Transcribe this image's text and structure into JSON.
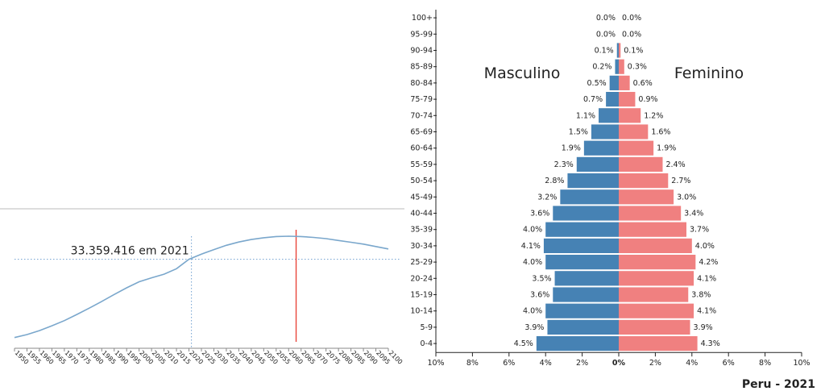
{
  "chart_data": [
    {
      "type": "line",
      "x": [
        1950,
        1955,
        1960,
        1965,
        1970,
        1975,
        1980,
        1985,
        1990,
        1995,
        2000,
        2005,
        2010,
        2015,
        2020,
        2025,
        2030,
        2035,
        2040,
        2045,
        2050,
        2055,
        2060,
        2065,
        2070,
        2075,
        2080,
        2085,
        2090,
        2095,
        2100
      ],
      "values": [
        7.6,
        8.6,
        9.9,
        11.5,
        13.2,
        15.2,
        17.3,
        19.5,
        21.8,
        24.0,
        26.0,
        27.3,
        28.5,
        30.3,
        33.4,
        35.1,
        36.6,
        38.0,
        39.1,
        39.9,
        40.5,
        40.9,
        41.0,
        40.9,
        40.6,
        40.2,
        39.6,
        39.0,
        38.4,
        37.6,
        36.8
      ],
      "xticks": [
        "1950",
        "1955",
        "1960",
        "1965",
        "1970",
        "1975",
        "1980",
        "1985",
        "1990",
        "1995",
        "2000",
        "2005",
        "2010",
        "2015",
        "2020",
        "2025",
        "2030",
        "2035",
        "2040",
        "2045",
        "2050",
        "2055",
        "2060",
        "2065",
        "2070",
        "2075",
        "2080",
        "2085",
        "2090",
        "2095",
        "2100"
      ],
      "highlight": {
        "x": 2021,
        "y": 33.4,
        "label": "33.359.416 em 2021"
      },
      "marker_year": 2063,
      "colors": {
        "line": "#7aa7cc",
        "marker": "#e8453c",
        "guide": "#6f9fd0",
        "axis": "#888888"
      }
    },
    {
      "type": "bar",
      "orientation": "horizontal",
      "categories": [
        "0-4",
        "5-9",
        "10-14",
        "15-19",
        "20-24",
        "25-29",
        "30-34",
        "35-39",
        "40-44",
        "45-49",
        "50-54",
        "55-59",
        "60-64",
        "65-69",
        "70-74",
        "75-79",
        "80-84",
        "85-89",
        "90-94",
        "95-99",
        "100+"
      ],
      "series": [
        {
          "name": "Masculino",
          "values": [
            4.5,
            3.9,
            4.0,
            3.6,
            3.5,
            4.0,
            4.1,
            4.0,
            3.6,
            3.2,
            2.8,
            2.3,
            1.9,
            1.5,
            1.1,
            0.7,
            0.5,
            0.2,
            0.1,
            0.0,
            0.0
          ],
          "labels": [
            "4.5%",
            "3.9%",
            "4.0%",
            "3.6%",
            "3.5%",
            "4.0%",
            "4.1%",
            "4.0%",
            "3.6%",
            "3.2%",
            "2.8%",
            "2.3%",
            "1.9%",
            "1.5%",
            "1.1%",
            "0.7%",
            "0.5%",
            "0.2%",
            "0.1%",
            "0.0%",
            "0.0%"
          ],
          "color": "#4682b4"
        },
        {
          "name": "Feminino",
          "values": [
            4.3,
            3.9,
            4.1,
            3.8,
            4.1,
            4.2,
            4.0,
            3.7,
            3.4,
            3.0,
            2.7,
            2.4,
            1.9,
            1.6,
            1.2,
            0.9,
            0.6,
            0.3,
            0.1,
            0.0,
            0.0
          ],
          "labels": [
            "4.3%",
            "3.9%",
            "4.1%",
            "3.8%",
            "4.1%",
            "4.2%",
            "4.0%",
            "3.7%",
            "3.4%",
            "3.0%",
            "2.7%",
            "2.4%",
            "1.9%",
            "1.6%",
            "1.2%",
            "0.9%",
            "0.6%",
            "0.3%",
            "0.1%",
            "0.0%",
            "0.0%"
          ],
          "color": "#f08080"
        }
      ],
      "xticks": [
        "10%",
        "8%",
        "6%",
        "4%",
        "2%",
        "0%",
        "2%",
        "4%",
        "6%",
        "8%",
        "10%"
      ],
      "xlim": [
        -10,
        10
      ],
      "caption": "Peru - 2021"
    }
  ]
}
